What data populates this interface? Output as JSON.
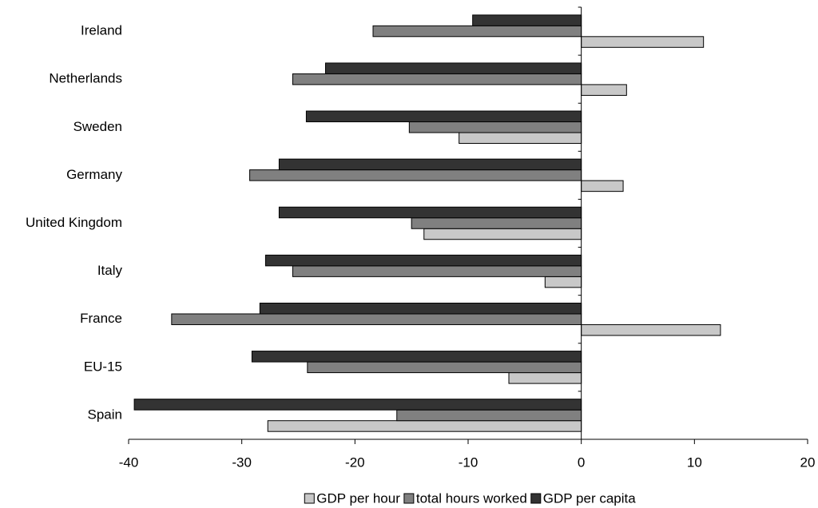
{
  "chart_data": {
    "type": "bar",
    "orientation": "horizontal",
    "categories": [
      "Ireland",
      "Netherlands",
      "Sweden",
      "Germany",
      "United Kingdom",
      "Italy",
      "France",
      "EU-15",
      "Spain"
    ],
    "series": [
      {
        "name": "GDP per hour",
        "color": "#c8c8c8",
        "values": [
          10.8,
          4.0,
          -10.8,
          3.7,
          -13.9,
          -3.2,
          12.3,
          -6.4,
          -27.7
        ]
      },
      {
        "name": "total hours worked",
        "color": "#808080",
        "values": [
          -18.4,
          -25.5,
          -15.2,
          -29.3,
          -15.0,
          -25.5,
          -36.2,
          -24.2,
          -16.3
        ]
      },
      {
        "name": "GDP per capita",
        "color": "#333333",
        "values": [
          -9.6,
          -22.6,
          -24.3,
          -26.7,
          -26.7,
          -27.9,
          -28.4,
          -29.1,
          -39.5
        ]
      }
    ],
    "xlim": [
      -40,
      20
    ],
    "xticks": [
      -40,
      -30,
      -20,
      -10,
      0,
      10,
      20
    ],
    "legend": "bottom"
  }
}
